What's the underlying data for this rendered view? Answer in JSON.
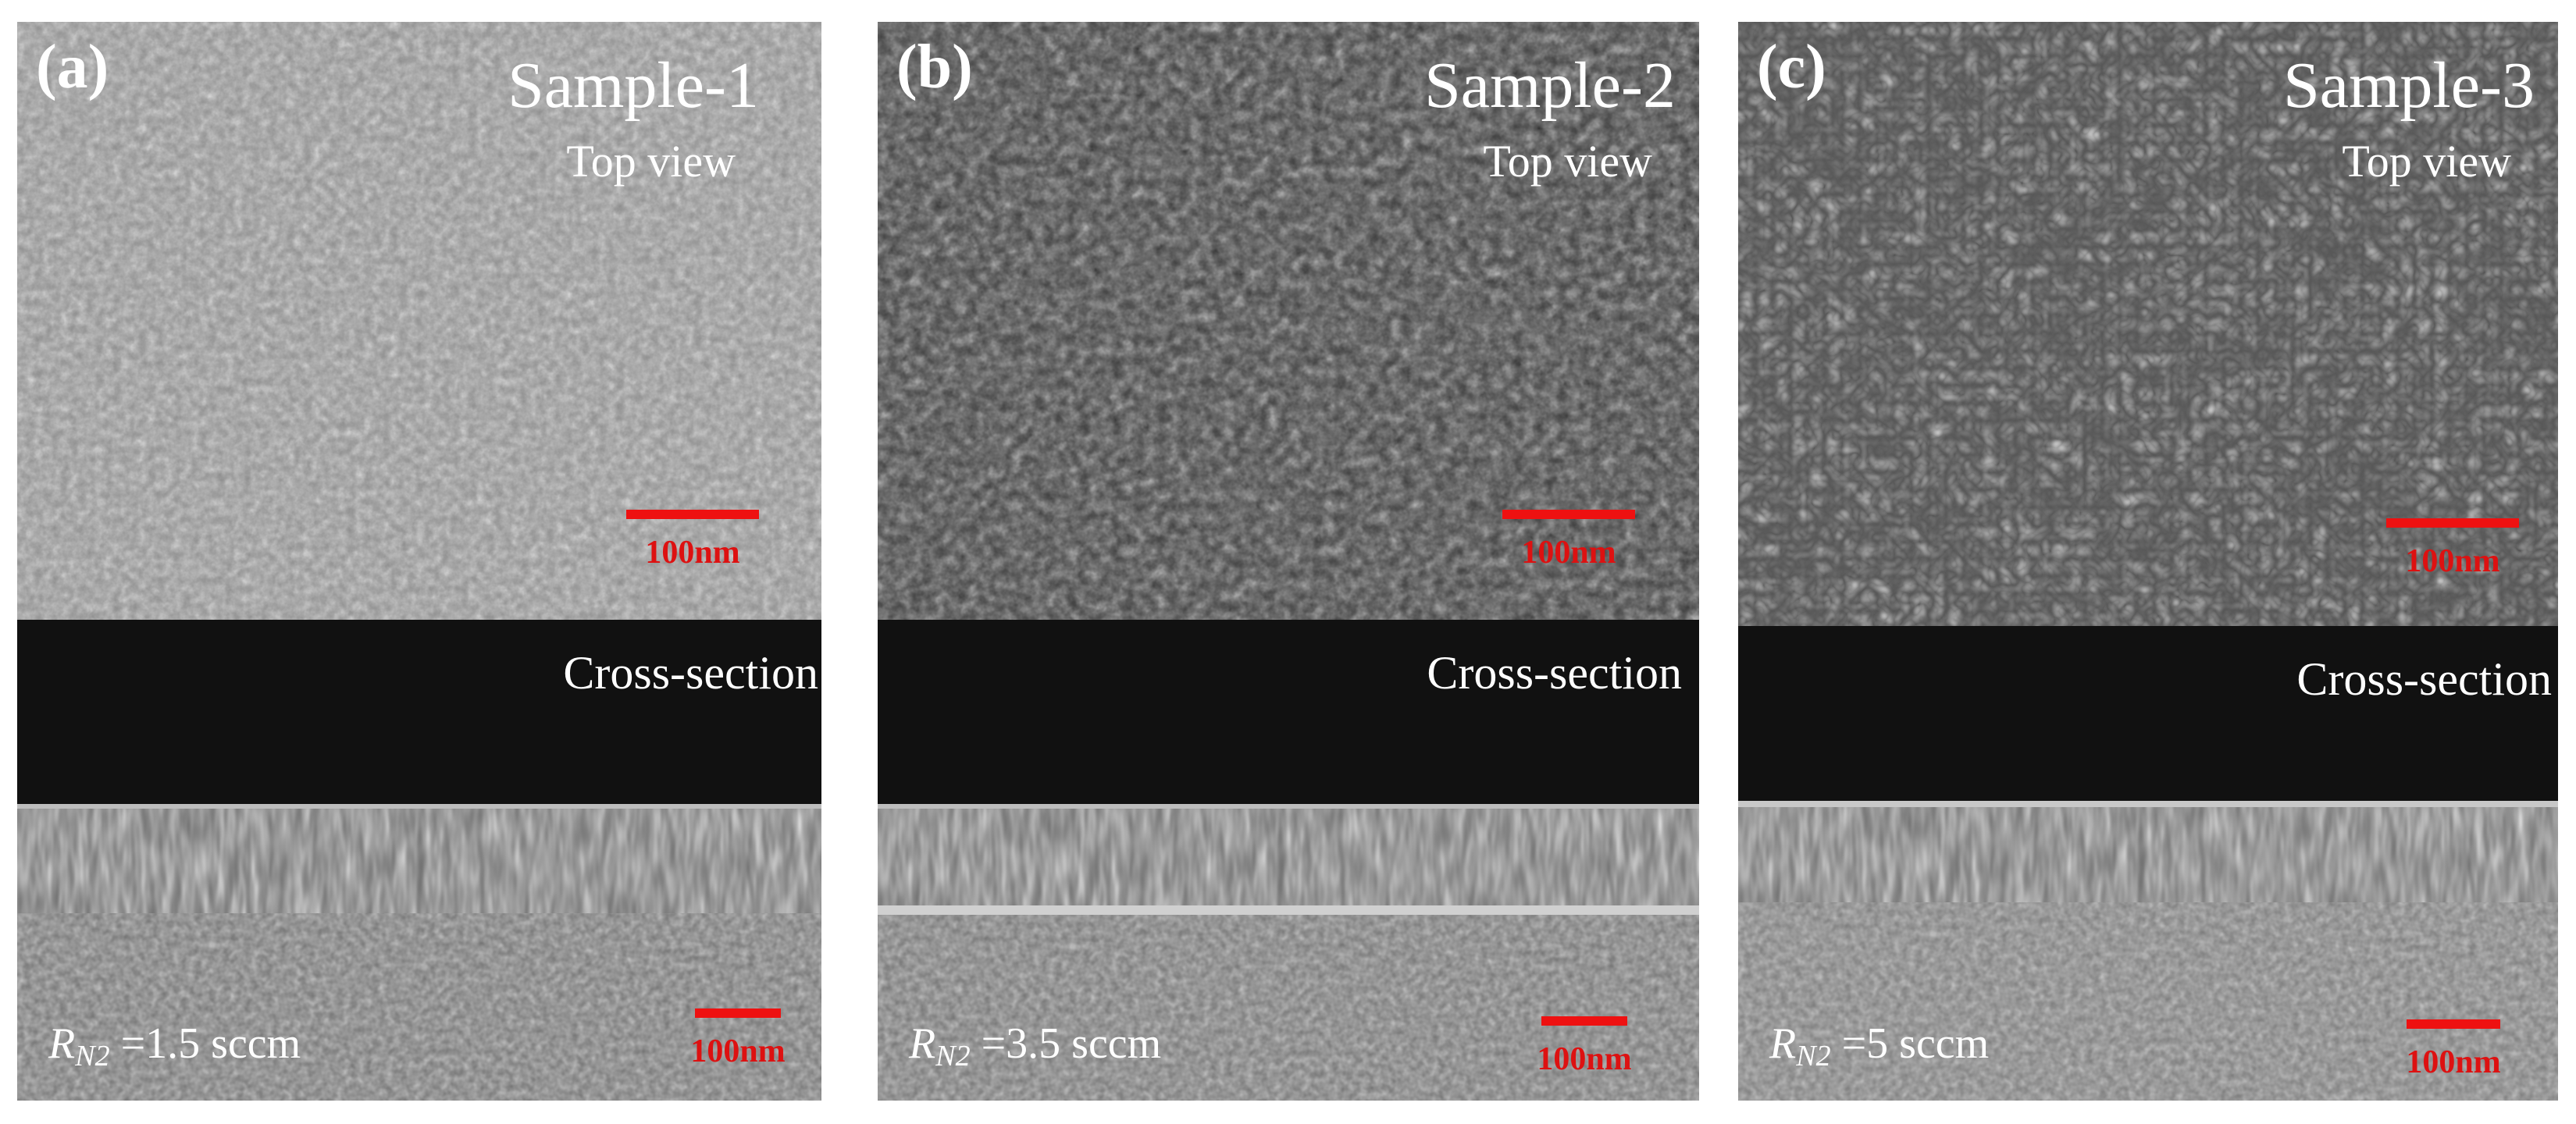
{
  "panels": [
    {
      "label": "(a)",
      "title": "Sample-1",
      "top_view_label": "Top view",
      "top_scale_label": "100nm",
      "cross_section_label": "Cross-section",
      "rate_symbol": "R",
      "rate_subscript": "N2",
      "rate_text": "=1.5 sccm",
      "cross_scale_label": "100nm"
    },
    {
      "label": "(b)",
      "title": "Sample-2",
      "top_view_label": "Top view",
      "top_scale_label": "100nm",
      "cross_section_label": "Cross-section",
      "rate_symbol": "R",
      "rate_subscript": "N2",
      "rate_text": "=3.5 sccm",
      "cross_scale_label": "100nm"
    },
    {
      "label": "(c)",
      "title": "Sample-3",
      "top_view_label": "Top view",
      "top_scale_label": "100nm",
      "cross_section_label": "Cross-section",
      "rate_symbol": "R",
      "rate_subscript": "N2",
      "rate_text": "=5 sccm",
      "cross_scale_label": "100nm"
    }
  ],
  "colors": {
    "scale_bar": "#ee1111",
    "label_text": "#ffffff",
    "vacuum": "#111111"
  }
}
